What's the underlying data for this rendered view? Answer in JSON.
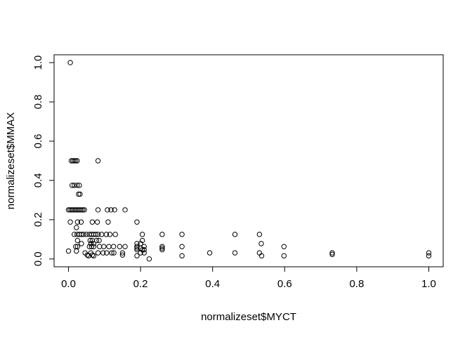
{
  "chart_data": {
    "type": "scatter",
    "title": "",
    "xlabel": "normalizeset$MYCT",
    "ylabel": "normalizeset$MMAX",
    "xlim": [
      -0.04,
      1.04
    ],
    "ylim": [
      -0.04,
      1.04
    ],
    "xticks": [
      0.0,
      0.2,
      0.4,
      0.6,
      0.8,
      1.0
    ],
    "xtick_labels": [
      "0.0",
      "0.2",
      "0.4",
      "0.6",
      "0.8",
      "1.0"
    ],
    "yticks": [
      0.0,
      0.2,
      0.4,
      0.6,
      0.8,
      1.0
    ],
    "ytick_labels": [
      "0.0",
      "0.2",
      "0.4",
      "0.6",
      "0.8",
      "1.0"
    ],
    "grid": false,
    "marker": "open-circle",
    "point_color": "#000000",
    "points": [
      [
        0.005,
        1.0
      ],
      [
        0.082,
        0.5
      ],
      [
        0.008,
        0.5
      ],
      [
        0.012,
        0.5
      ],
      [
        0.016,
        0.5
      ],
      [
        0.02,
        0.5
      ],
      [
        0.024,
        0.5
      ],
      [
        0.01,
        0.375
      ],
      [
        0.016,
        0.375
      ],
      [
        0.024,
        0.375
      ],
      [
        0.03,
        0.375
      ],
      [
        0.028,
        0.33
      ],
      [
        0.032,
        0.33
      ],
      [
        0.0,
        0.25
      ],
      [
        0.004,
        0.25
      ],
      [
        0.008,
        0.25
      ],
      [
        0.012,
        0.25
      ],
      [
        0.016,
        0.25
      ],
      [
        0.02,
        0.25
      ],
      [
        0.024,
        0.25
      ],
      [
        0.028,
        0.25
      ],
      [
        0.032,
        0.25
      ],
      [
        0.036,
        0.25
      ],
      [
        0.04,
        0.25
      ],
      [
        0.044,
        0.25
      ],
      [
        0.082,
        0.25
      ],
      [
        0.108,
        0.25
      ],
      [
        0.118,
        0.25
      ],
      [
        0.128,
        0.25
      ],
      [
        0.157,
        0.25
      ],
      [
        0.005,
        0.188
      ],
      [
        0.025,
        0.188
      ],
      [
        0.035,
        0.188
      ],
      [
        0.066,
        0.188
      ],
      [
        0.08,
        0.188
      ],
      [
        0.11,
        0.188
      ],
      [
        0.19,
        0.188
      ],
      [
        0.022,
        0.16
      ],
      [
        0.016,
        0.125
      ],
      [
        0.024,
        0.125
      ],
      [
        0.03,
        0.125
      ],
      [
        0.036,
        0.125
      ],
      [
        0.042,
        0.125
      ],
      [
        0.05,
        0.125
      ],
      [
        0.058,
        0.125
      ],
      [
        0.064,
        0.125
      ],
      [
        0.07,
        0.125
      ],
      [
        0.076,
        0.125
      ],
      [
        0.082,
        0.125
      ],
      [
        0.092,
        0.125
      ],
      [
        0.105,
        0.125
      ],
      [
        0.115,
        0.125
      ],
      [
        0.13,
        0.125
      ],
      [
        0.205,
        0.125
      ],
      [
        0.26,
        0.125
      ],
      [
        0.315,
        0.125
      ],
      [
        0.462,
        0.125
      ],
      [
        0.53,
        0.125
      ],
      [
        0.025,
        0.094
      ],
      [
        0.06,
        0.094
      ],
      [
        0.066,
        0.094
      ],
      [
        0.078,
        0.094
      ],
      [
        0.085,
        0.094
      ],
      [
        0.205,
        0.094
      ],
      [
        0.036,
        0.078
      ],
      [
        0.062,
        0.078
      ],
      [
        0.07,
        0.078
      ],
      [
        0.19,
        0.078
      ],
      [
        0.2,
        0.078
      ],
      [
        0.535,
        0.078
      ],
      [
        0.02,
        0.063
      ],
      [
        0.025,
        0.063
      ],
      [
        0.058,
        0.063
      ],
      [
        0.064,
        0.063
      ],
      [
        0.07,
        0.063
      ],
      [
        0.086,
        0.063
      ],
      [
        0.098,
        0.063
      ],
      [
        0.112,
        0.063
      ],
      [
        0.125,
        0.063
      ],
      [
        0.142,
        0.063
      ],
      [
        0.157,
        0.063
      ],
      [
        0.19,
        0.063
      ],
      [
        0.21,
        0.063
      ],
      [
        0.26,
        0.063
      ],
      [
        0.315,
        0.063
      ],
      [
        0.598,
        0.063
      ],
      [
        0.19,
        0.055
      ],
      [
        0.2,
        0.055
      ],
      [
        0.26,
        0.055
      ],
      [
        0.0,
        0.04
      ],
      [
        0.022,
        0.04
      ],
      [
        0.19,
        0.047
      ],
      [
        0.205,
        0.047
      ],
      [
        0.21,
        0.047
      ],
      [
        0.26,
        0.047
      ],
      [
        0.046,
        0.031
      ],
      [
        0.062,
        0.031
      ],
      [
        0.082,
        0.031
      ],
      [
        0.096,
        0.031
      ],
      [
        0.106,
        0.031
      ],
      [
        0.12,
        0.031
      ],
      [
        0.126,
        0.031
      ],
      [
        0.15,
        0.031
      ],
      [
        0.2,
        0.031
      ],
      [
        0.21,
        0.031
      ],
      [
        0.392,
        0.031
      ],
      [
        0.462,
        0.031
      ],
      [
        0.53,
        0.031
      ],
      [
        0.732,
        0.031
      ],
      [
        1.0,
        0.031
      ],
      [
        0.052,
        0.02
      ],
      [
        0.066,
        0.02
      ],
      [
        0.15,
        0.02
      ],
      [
        0.732,
        0.023
      ],
      [
        0.056,
        0.016
      ],
      [
        0.07,
        0.016
      ],
      [
        0.19,
        0.016
      ],
      [
        0.315,
        0.016
      ],
      [
        0.536,
        0.016
      ],
      [
        0.598,
        0.016
      ],
      [
        1.0,
        0.016
      ],
      [
        0.224,
        0.0
      ]
    ]
  }
}
